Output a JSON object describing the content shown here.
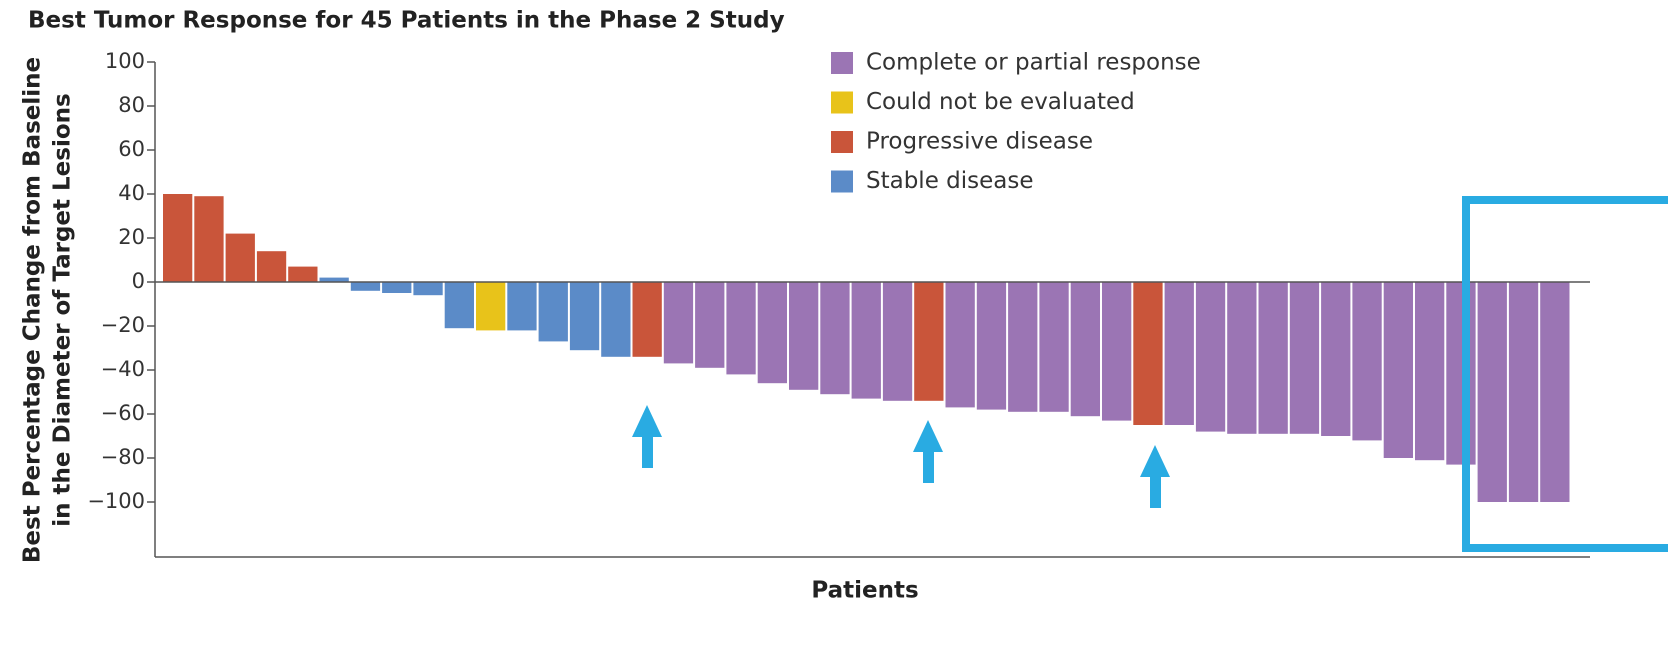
{
  "chart_data": {
    "type": "bar",
    "title": "Best Tumor Response for 45 Patients in the Phase 2 Study",
    "y_label": [
      "Best Percentage Change from Baseline",
      "in the Diameter of Target Lesions"
    ],
    "x_label": "Patients",
    "values": [
      40,
      39,
      22,
      14,
      7,
      2,
      -4,
      -5,
      -6,
      -21,
      -22,
      -22,
      -27,
      -31,
      -34,
      -34,
      -37,
      -39,
      -42,
      -46,
      -49,
      -51,
      -53,
      -54,
      -54,
      -57,
      -58,
      -59,
      -59,
      -61,
      -63,
      -65,
      -65,
      -68,
      -69,
      -69,
      -69,
      -70,
      -72,
      -80,
      -81,
      -83,
      -100,
      -100,
      -100
    ],
    "bar_colors": [
      "#c9553a",
      "#c9553a",
      "#c9553a",
      "#c9553a",
      "#c9553a",
      "#5b8bc8",
      "#5b8bc8",
      "#5b8bc8",
      "#5b8bc8",
      "#5b8bc8",
      "#e8c31a",
      "#5b8bc8",
      "#5b8bc8",
      "#5b8bc8",
      "#5b8bc8",
      "#c9553a",
      "#9b75b4",
      "#9b75b4",
      "#9b75b4",
      "#9b75b4",
      "#9b75b4",
      "#9b75b4",
      "#9b75b4",
      "#9b75b4",
      "#c9553a",
      "#9b75b4",
      "#9b75b4",
      "#9b75b4",
      "#9b75b4",
      "#9b75b4",
      "#9b75b4",
      "#c9553a",
      "#9b75b4",
      "#9b75b4",
      "#9b75b4",
      "#9b75b4",
      "#9b75b4",
      "#9b75b4",
      "#9b75b4",
      "#9b75b4",
      "#9b75b4",
      "#9b75b4",
      "#9b75b4",
      "#9b75b4",
      "#9b75b4"
    ],
    "legend": [
      {
        "name": "Complete or partial response",
        "color": "#9b75b4"
      },
      {
        "name": "Could not be evaluated",
        "color": "#e8c31a"
      },
      {
        "name": "Progressive disease",
        "color": "#c9553a"
      },
      {
        "name": "Stable disease",
        "color": "#5b8bc8"
      }
    ],
    "ylim": [
      -125,
      100
    ],
    "yticks": [
      {
        "value": -100,
        "label": "−100"
      },
      {
        "value": -80,
        "label": "−80"
      },
      {
        "value": -60,
        "label": "−60"
      },
      {
        "value": -40,
        "label": "−40"
      },
      {
        "value": -20,
        "label": "−20"
      },
      0,
      20,
      40,
      60,
      80,
      100
    ]
  }
}
